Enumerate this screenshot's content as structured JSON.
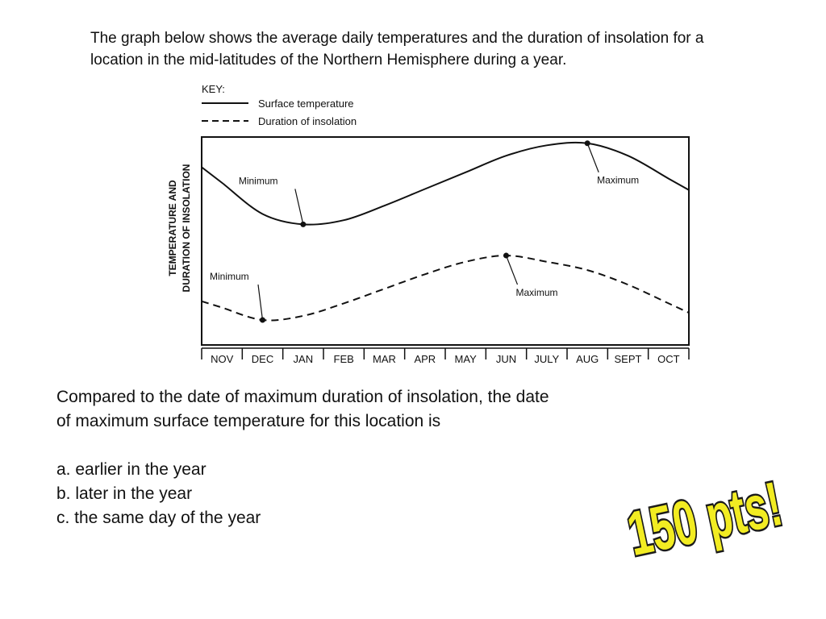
{
  "slide": {
    "intro": "The graph below shows the average daily temperatures and the duration of insolation for a location in the mid-latitudes of the Northern Hemisphere during a year.",
    "question": "Compared to the date of maximum duration of insolation, the date of maximum surface temperature for this location is",
    "options": [
      "a. earlier in the year",
      "b. later in the year",
      "c. the same day of the year"
    ],
    "badge_text": "150 pts!",
    "badge_colors": {
      "fill": "#f2ec22",
      "outline": "#1a1a1a"
    }
  },
  "chart_data": {
    "type": "line",
    "title": "",
    "key_title": "KEY:",
    "ylabel_lines": [
      "TEMPERATURE AND",
      "DURATION OF INSOLATION"
    ],
    "xlabel": "",
    "categories": [
      "NOV",
      "DEC",
      "JAN",
      "FEB",
      "MAR",
      "APR",
      "MAY",
      "JUN",
      "JULY",
      "AUG",
      "SEPT",
      "OCT"
    ],
    "y_axis_ticks": "none (relative scale, no tick labels)",
    "series": [
      {
        "name": "Surface temperature",
        "style": "solid",
        "values": [
          0.78,
          0.63,
          0.58,
          0.6,
          0.67,
          0.75,
          0.83,
          0.91,
          0.96,
          0.97,
          0.91,
          0.8
        ],
        "extrema": [
          {
            "label": "Minimum",
            "month": "JAN"
          },
          {
            "label": "Maximum",
            "month": "AUG"
          }
        ]
      },
      {
        "name": "Duration of insolation",
        "style": "dashed",
        "values": [
          0.18,
          0.12,
          0.14,
          0.2,
          0.27,
          0.34,
          0.4,
          0.43,
          0.4,
          0.36,
          0.29,
          0.2
        ],
        "extrema": [
          {
            "label": "Minimum",
            "month": "DEC"
          },
          {
            "label": "Maximum",
            "month": "JUN"
          }
        ]
      }
    ],
    "grid": false
  }
}
